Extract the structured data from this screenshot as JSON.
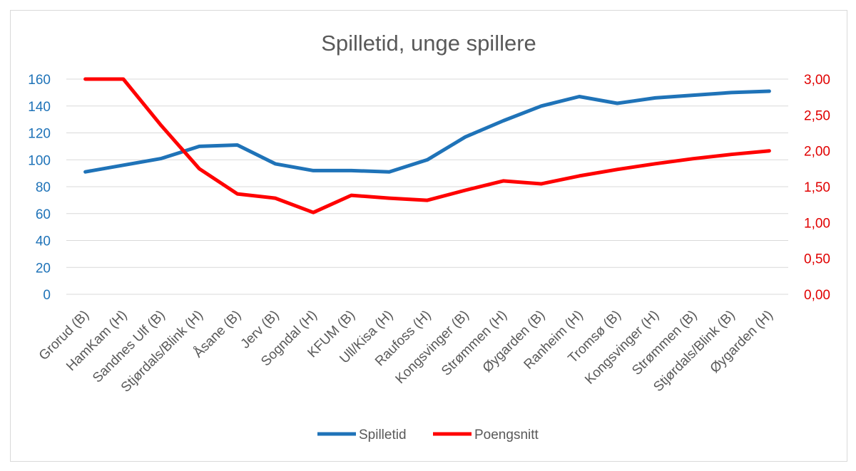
{
  "chart_data": {
    "type": "line",
    "title": "Spilletid, unge spillere",
    "categories": [
      "Grorud (B)",
      "HamKam (H)",
      "Sandnes Ulf (B)",
      "Stjørdals/Blink (H)",
      "Åsane (B)",
      "Jerv (B)",
      "Sogndal (H)",
      "KFUM (B)",
      "Ull/Kisa (H)",
      "Raufoss (H)",
      "Kongsvinger (B)",
      "Strømmen (H)",
      "Øygarden (B)",
      "Ranheim (H)",
      "Tromsø (B)",
      "Kongsvinger (H)",
      "Strømmen (B)",
      "Stjørdals/Blink (B)",
      "Øygarden (H)"
    ],
    "y_left": {
      "ylim": [
        0,
        160
      ],
      "ticks": [
        "0",
        "20",
        "40",
        "60",
        "80",
        "100",
        "120",
        "140",
        "160"
      ]
    },
    "y_right": {
      "ylim": [
        0,
        3
      ],
      "ticks": [
        "0,00",
        "0,50",
        "1,00",
        "1,50",
        "2,00",
        "2,50",
        "3,00"
      ]
    },
    "series": [
      {
        "name": "Spilletid",
        "axis": "left",
        "color": "#1f73b8",
        "values": [
          91,
          96,
          101,
          110,
          111,
          97,
          92,
          92,
          91,
          100,
          117,
          129,
          140,
          147,
          142,
          146,
          148,
          150,
          151
        ]
      },
      {
        "name": "Poengsnitt",
        "axis": "right",
        "color": "#ff0000",
        "values": [
          3.0,
          3.0,
          2.35,
          1.75,
          1.4,
          1.34,
          1.14,
          1.38,
          1.34,
          1.31,
          1.45,
          1.58,
          1.54,
          1.65,
          1.74,
          1.82,
          1.89,
          1.95,
          2.0
        ]
      }
    ],
    "legend": "bottom",
    "grid": "horizontal"
  }
}
